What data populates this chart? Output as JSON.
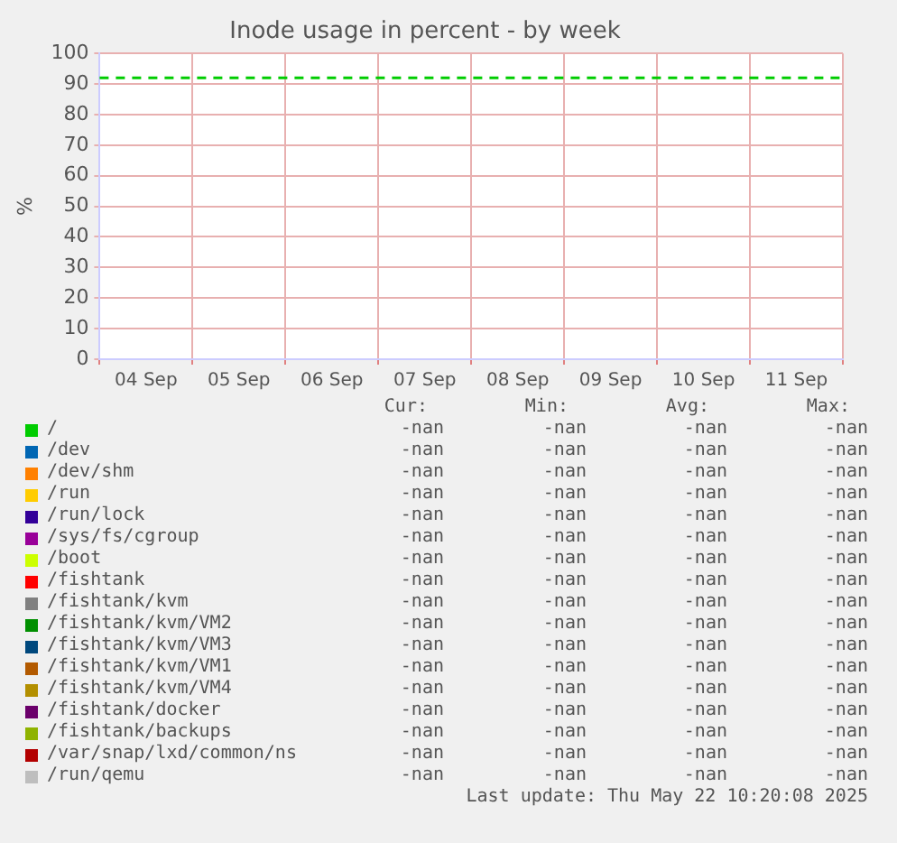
{
  "chart_data": {
    "type": "line",
    "title": "Inode usage in percent - by week",
    "ylabel": "%",
    "categories": [
      "04 Sep",
      "05 Sep",
      "06 Sep",
      "07 Sep",
      "08 Sep",
      "09 Sep",
      "10 Sep",
      "11 Sep"
    ],
    "ylim": [
      0,
      100
    ],
    "yticks": [
      0,
      10,
      20,
      30,
      40,
      50,
      60,
      70,
      80,
      90,
      100
    ],
    "grid": true,
    "legend": "bottom",
    "ref_lines": [
      {
        "axis": "y",
        "value": 92,
        "color": "#00cc00",
        "line_style": "dashed"
      }
    ],
    "series": [
      {
        "name": "/",
        "color": "#00cc00",
        "values": [
          null,
          null,
          null,
          null,
          null,
          null,
          null,
          null
        ]
      },
      {
        "name": "/dev",
        "color": "#0066b3",
        "values": [
          null,
          null,
          null,
          null,
          null,
          null,
          null,
          null
        ]
      },
      {
        "name": "/dev/shm",
        "color": "#ff8000",
        "values": [
          null,
          null,
          null,
          null,
          null,
          null,
          null,
          null
        ]
      },
      {
        "name": "/run",
        "color": "#ffcc00",
        "values": [
          null,
          null,
          null,
          null,
          null,
          null,
          null,
          null
        ]
      },
      {
        "name": "/run/lock",
        "color": "#330099",
        "values": [
          null,
          null,
          null,
          null,
          null,
          null,
          null,
          null
        ]
      },
      {
        "name": "/sys/fs/cgroup",
        "color": "#990099",
        "values": [
          null,
          null,
          null,
          null,
          null,
          null,
          null,
          null
        ]
      },
      {
        "name": "/boot",
        "color": "#ccff00",
        "values": [
          null,
          null,
          null,
          null,
          null,
          null,
          null,
          null
        ]
      },
      {
        "name": "/fishtank",
        "color": "#ff0000",
        "values": [
          null,
          null,
          null,
          null,
          null,
          null,
          null,
          null
        ]
      },
      {
        "name": "/fishtank/kvm",
        "color": "#808080",
        "values": [
          null,
          null,
          null,
          null,
          null,
          null,
          null,
          null
        ]
      },
      {
        "name": "/fishtank/kvm/VM2",
        "color": "#008f00",
        "values": [
          null,
          null,
          null,
          null,
          null,
          null,
          null,
          null
        ]
      },
      {
        "name": "/fishtank/kvm/VM3",
        "color": "#00487d",
        "values": [
          null,
          null,
          null,
          null,
          null,
          null,
          null,
          null
        ]
      },
      {
        "name": "/fishtank/kvm/VM1",
        "color": "#b35a00",
        "values": [
          null,
          null,
          null,
          null,
          null,
          null,
          null,
          null
        ]
      },
      {
        "name": "/fishtank/kvm/VM4",
        "color": "#b38f00",
        "values": [
          null,
          null,
          null,
          null,
          null,
          null,
          null,
          null
        ]
      },
      {
        "name": "/fishtank/docker",
        "color": "#6b006b",
        "values": [
          null,
          null,
          null,
          null,
          null,
          null,
          null,
          null
        ]
      },
      {
        "name": "/fishtank/backups",
        "color": "#8fb300",
        "values": [
          null,
          null,
          null,
          null,
          null,
          null,
          null,
          null
        ]
      },
      {
        "name": "/var/snap/lxd/common/ns",
        "color": "#b30000",
        "values": [
          null,
          null,
          null,
          null,
          null,
          null,
          null,
          null
        ]
      },
      {
        "name": "/run/qemu",
        "color": "#bebebe",
        "values": [
          null,
          null,
          null,
          null,
          null,
          null,
          null,
          null
        ]
      }
    ],
    "annotations": [
      "Cur:",
      "Min:",
      "Avg:",
      "Max:",
      "-nan",
      "-nan",
      "-nan",
      "-nan",
      "-nan",
      "-nan",
      "-nan",
      "-nan",
      "-nan",
      "-nan",
      "-nan",
      "-nan",
      "-nan",
      "-nan",
      "-nan",
      "-nan",
      "-nan",
      "-nan",
      "-nan",
      "-nan",
      "-nan",
      "-nan",
      "-nan",
      "-nan",
      "-nan",
      "-nan",
      "-nan",
      "-nan",
      "-nan",
      "-nan",
      "-nan",
      "-nan",
      "-nan",
      "-nan",
      "-nan",
      "-nan",
      "-nan",
      "-nan",
      "-nan",
      "-nan",
      "-nan",
      "-nan",
      "-nan",
      "-nan",
      "-nan",
      "-nan",
      "-nan",
      "-nan",
      "-nan",
      "-nan",
      "-nan",
      "-nan",
      "-nan",
      "-nan",
      "-nan",
      "-nan",
      "-nan",
      "-nan",
      "-nan",
      "-nan",
      "-nan",
      "-nan",
      "-nan",
      "-nan",
      "-nan",
      "-nan",
      "-nan",
      "-nan",
      "Last update: Thu May 22 10:20:08 2025"
    ]
  }
}
